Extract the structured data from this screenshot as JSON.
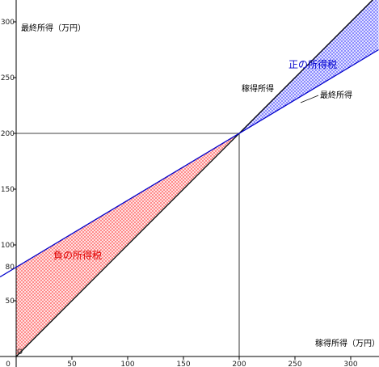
{
  "chart_data": {
    "type": "line",
    "title": "",
    "xlabel": "稼得所得（万円）",
    "ylabel": "最終所得（万円）",
    "xlim": [
      0,
      325
    ],
    "ylim": [
      0,
      310
    ],
    "x_ticks": [
      0,
      50,
      100,
      150,
      200,
      250,
      300
    ],
    "y_ticks": [
      50,
      100,
      150,
      200,
      250,
      300
    ],
    "extra_y_tick": {
      "value": 80,
      "label": "80"
    },
    "origin_label": "O",
    "series": [
      {
        "name": "稼得所得",
        "points": [
          [
            0,
            0
          ],
          [
            325,
            325
          ]
        ],
        "color": "#000000"
      },
      {
        "name": "最終所得",
        "points": [
          [
            0,
            80
          ],
          [
            325,
            275
          ]
        ],
        "color": "#0000cc"
      }
    ],
    "reference_lines": {
      "x": 200,
      "y": 200
    },
    "regions": [
      {
        "name": "負の所得税",
        "color": "#ff6b6b",
        "label_color": "#e00000"
      },
      {
        "name": "正の所得税",
        "color": "#6b6bff",
        "label_color": "#0000cc"
      }
    ],
    "grid": false,
    "legend": "none"
  }
}
